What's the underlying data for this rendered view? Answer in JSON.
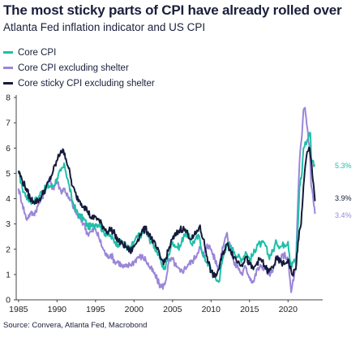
{
  "title": "The most sticky parts of CPI have already rolled over",
  "subtitle": "Atlanta Fed inflation indicator and US CPI",
  "source": "Source: Convera, Atlanta Fed, Macrobond",
  "chart_data": {
    "type": "line",
    "title": "The most sticky parts of CPI have already rolled over",
    "subtitle": "Atlanta Fed inflation indicator and US CPI",
    "xlabel": "",
    "ylabel": "",
    "xlim": [
      1984.7,
      2024.5
    ],
    "ylim": [
      0,
      8
    ],
    "x_ticks": [
      1985,
      1990,
      1995,
      2000,
      2005,
      2010,
      2015,
      2020
    ],
    "y_ticks": [
      0,
      1,
      2,
      3,
      4,
      5,
      6,
      7,
      8
    ],
    "grid": false,
    "legend_position": "top-left",
    "series": [
      {
        "name": "Core CPI",
        "color": "#1fbfa8",
        "end_label": "5.3%",
        "points": [
          [
            1985,
            5.1
          ],
          [
            1985.5,
            4.4
          ],
          [
            1986,
            4.1
          ],
          [
            1986.5,
            3.9
          ],
          [
            1987,
            3.9
          ],
          [
            1987.5,
            4.0
          ],
          [
            1988,
            4.3
          ],
          [
            1988.5,
            4.4
          ],
          [
            1989,
            4.5
          ],
          [
            1989.5,
            4.5
          ],
          [
            1990,
            4.8
          ],
          [
            1990.5,
            5.1
          ],
          [
            1991,
            5.3
          ],
          [
            1991.5,
            4.6
          ],
          [
            1992,
            3.9
          ],
          [
            1992.5,
            3.5
          ],
          [
            1993,
            3.3
          ],
          [
            1993.5,
            3.2
          ],
          [
            1994,
            2.9
          ],
          [
            1994.5,
            2.9
          ],
          [
            1995,
            3.0
          ],
          [
            1995.5,
            3.0
          ],
          [
            1996,
            2.7
          ],
          [
            1996.5,
            2.6
          ],
          [
            1997,
            2.5
          ],
          [
            1997.5,
            2.3
          ],
          [
            1998,
            2.2
          ],
          [
            1998.5,
            2.3
          ],
          [
            1999,
            2.1
          ],
          [
            1999.5,
            2.0
          ],
          [
            2000,
            2.3
          ],
          [
            2000.5,
            2.5
          ],
          [
            2001,
            2.6
          ],
          [
            2001.5,
            2.7
          ],
          [
            2002,
            2.4
          ],
          [
            2002.5,
            2.2
          ],
          [
            2003,
            1.9
          ],
          [
            2003.5,
            1.5
          ],
          [
            2004,
            1.2
          ],
          [
            2004.5,
            1.8
          ],
          [
            2005,
            2.3
          ],
          [
            2005.5,
            2.1
          ],
          [
            2006,
            2.1
          ],
          [
            2006.5,
            2.6
          ],
          [
            2007,
            2.6
          ],
          [
            2007.5,
            2.2
          ],
          [
            2008,
            2.4
          ],
          [
            2008.5,
            2.5
          ],
          [
            2009,
            1.7
          ],
          [
            2009.5,
            1.5
          ],
          [
            2010,
            1.2
          ],
          [
            2010.5,
            0.9
          ],
          [
            2011,
            0.7
          ],
          [
            2011.5,
            1.6
          ],
          [
            2012,
            2.2
          ],
          [
            2012.5,
            2.1
          ],
          [
            2013,
            1.9
          ],
          [
            2013.5,
            1.7
          ],
          [
            2014,
            1.6
          ],
          [
            2014.5,
            1.9
          ],
          [
            2015,
            1.6
          ],
          [
            2015.5,
            1.8
          ],
          [
            2016,
            2.2
          ],
          [
            2016.5,
            2.2
          ],
          [
            2017,
            2.2
          ],
          [
            2017.5,
            1.7
          ],
          [
            2018,
            1.9
          ],
          [
            2018.5,
            2.3
          ],
          [
            2019,
            2.1
          ],
          [
            2019.5,
            2.2
          ],
          [
            2020,
            2.3
          ],
          [
            2020.4,
            1.3
          ],
          [
            2020.8,
            1.6
          ],
          [
            2021,
            1.4
          ],
          [
            2021.3,
            3.0
          ],
          [
            2021.5,
            4.5
          ],
          [
            2021.8,
            5.0
          ],
          [
            2022,
            6.0
          ],
          [
            2022.3,
            6.2
          ],
          [
            2022.7,
            6.5
          ],
          [
            2022.9,
            6.6
          ],
          [
            2023,
            5.6
          ],
          [
            2023.2,
            5.5
          ],
          [
            2023.5,
            5.3
          ]
        ]
      },
      {
        "name": "Core CPI excluding shelter",
        "color": "#9a86d9",
        "end_label": "3.4%",
        "points": [
          [
            1985,
            4.4
          ],
          [
            1985.5,
            3.8
          ],
          [
            1986,
            3.2
          ],
          [
            1986.5,
            3.4
          ],
          [
            1987,
            3.4
          ],
          [
            1987.5,
            3.7
          ],
          [
            1988,
            4.0
          ],
          [
            1988.5,
            4.4
          ],
          [
            1989,
            4.7
          ],
          [
            1989.5,
            4.4
          ],
          [
            1990,
            4.7
          ],
          [
            1990.5,
            4.3
          ],
          [
            1991,
            4.4
          ],
          [
            1991.5,
            4.0
          ],
          [
            1992,
            3.8
          ],
          [
            1992.5,
            3.4
          ],
          [
            1993,
            3.2
          ],
          [
            1993.5,
            3.0
          ],
          [
            1994,
            2.6
          ],
          [
            1994.5,
            2.7
          ],
          [
            1995,
            2.8
          ],
          [
            1995.5,
            2.4
          ],
          [
            1996,
            2.0
          ],
          [
            1996.5,
            1.7
          ],
          [
            1997,
            1.8
          ],
          [
            1997.5,
            1.5
          ],
          [
            1998,
            1.5
          ],
          [
            1998.5,
            1.3
          ],
          [
            1999,
            1.3
          ],
          [
            1999.5,
            1.4
          ],
          [
            2000,
            1.5
          ],
          [
            2000.5,
            1.7
          ],
          [
            2001,
            1.7
          ],
          [
            2001.5,
            1.6
          ],
          [
            2002,
            1.3
          ],
          [
            2002.5,
            1.1
          ],
          [
            2003,
            0.8
          ],
          [
            2003.5,
            0.5
          ],
          [
            2004,
            0.6
          ],
          [
            2004.5,
            1.5
          ],
          [
            2005,
            1.6
          ],
          [
            2005.5,
            1.3
          ],
          [
            2006,
            1.1
          ],
          [
            2006.5,
            1.2
          ],
          [
            2007,
            1.4
          ],
          [
            2007.5,
            1.5
          ],
          [
            2008,
            1.7
          ],
          [
            2008.5,
            2.1
          ],
          [
            2009,
            1.7
          ],
          [
            2009.5,
            2.2
          ],
          [
            2010,
            2.0
          ],
          [
            2010.5,
            1.6
          ],
          [
            2011,
            1.2
          ],
          [
            2011.5,
            2.1
          ],
          [
            2012,
            2.6
          ],
          [
            2012.5,
            2.1
          ],
          [
            2013,
            1.4
          ],
          [
            2013.5,
            1.3
          ],
          [
            2014,
            1.0
          ],
          [
            2014.5,
            1.3
          ],
          [
            2015,
            0.9
          ],
          [
            2015.5,
            0.7
          ],
          [
            2016,
            1.2
          ],
          [
            2016.5,
            1.3
          ],
          [
            2017,
            1.3
          ],
          [
            2017.5,
            1.0
          ],
          [
            2018,
            1.1
          ],
          [
            2018.5,
            1.7
          ],
          [
            2019,
            1.6
          ],
          [
            2019.5,
            1.8
          ],
          [
            2020,
            1.6
          ],
          [
            2020.4,
            0.3
          ],
          [
            2020.8,
            1.0
          ],
          [
            2021,
            1.2
          ],
          [
            2021.3,
            4.0
          ],
          [
            2021.5,
            5.5
          ],
          [
            2021.8,
            6.5
          ],
          [
            2022,
            7.5
          ],
          [
            2022.2,
            7.6
          ],
          [
            2022.5,
            6.8
          ],
          [
            2022.8,
            6.0
          ],
          [
            2023,
            4.5
          ],
          [
            2023.2,
            4.2
          ],
          [
            2023.5,
            3.4
          ]
        ]
      },
      {
        "name": "Core sticky CPI excluding shelter",
        "color": "#141b3a",
        "end_label": "3.9%",
        "points": [
          [
            1985,
            5.1
          ],
          [
            1985.5,
            4.7
          ],
          [
            1986,
            4.4
          ],
          [
            1986.5,
            4.0
          ],
          [
            1987,
            3.9
          ],
          [
            1987.5,
            3.9
          ],
          [
            1988,
            4.1
          ],
          [
            1988.5,
            4.4
          ],
          [
            1989,
            4.7
          ],
          [
            1989.5,
            5.1
          ],
          [
            1990,
            5.5
          ],
          [
            1990.5,
            5.9
          ],
          [
            1991,
            5.8
          ],
          [
            1991.5,
            5.2
          ],
          [
            1992,
            4.5
          ],
          [
            1992.5,
            4.1
          ],
          [
            1993,
            3.9
          ],
          [
            1993.5,
            3.7
          ],
          [
            1994,
            3.5
          ],
          [
            1994.5,
            3.2
          ],
          [
            1995,
            3.3
          ],
          [
            1995.5,
            3.1
          ],
          [
            1996,
            2.9
          ],
          [
            1996.5,
            2.7
          ],
          [
            1997,
            2.8
          ],
          [
            1997.5,
            2.6
          ],
          [
            1998,
            2.3
          ],
          [
            1998.5,
            2.2
          ],
          [
            1999,
            2.1
          ],
          [
            1999.5,
            1.9
          ],
          [
            2000,
            2.1
          ],
          [
            2000.5,
            2.4
          ],
          [
            2001,
            2.7
          ],
          [
            2001.5,
            2.8
          ],
          [
            2002,
            2.6
          ],
          [
            2002.5,
            2.3
          ],
          [
            2003,
            2.0
          ],
          [
            2003.5,
            1.6
          ],
          [
            2004,
            1.5
          ],
          [
            2004.5,
            2.0
          ],
          [
            2005,
            2.4
          ],
          [
            2005.5,
            2.6
          ],
          [
            2006,
            2.8
          ],
          [
            2006.5,
            2.8
          ],
          [
            2007,
            2.6
          ],
          [
            2007.5,
            2.4
          ],
          [
            2008,
            2.6
          ],
          [
            2008.5,
            2.9
          ],
          [
            2009,
            2.4
          ],
          [
            2009.5,
            1.7
          ],
          [
            2010,
            1.1
          ],
          [
            2010.5,
            0.9
          ],
          [
            2011,
            1.2
          ],
          [
            2011.5,
            1.8
          ],
          [
            2012,
            2.2
          ],
          [
            2012.5,
            2.0
          ],
          [
            2013,
            1.7
          ],
          [
            2013.5,
            1.5
          ],
          [
            2014,
            1.4
          ],
          [
            2014.5,
            1.7
          ],
          [
            2015,
            1.4
          ],
          [
            2015.5,
            1.2
          ],
          [
            2016,
            1.5
          ],
          [
            2016.5,
            1.6
          ],
          [
            2017,
            1.3
          ],
          [
            2017.5,
            1.1
          ],
          [
            2018,
            1.3
          ],
          [
            2018.5,
            1.6
          ],
          [
            2019,
            1.5
          ],
          [
            2019.5,
            1.4
          ],
          [
            2020,
            1.6
          ],
          [
            2020.5,
            1.0
          ],
          [
            2021,
            1.2
          ],
          [
            2021.3,
            2.3
          ],
          [
            2021.7,
            3.0
          ],
          [
            2022,
            4.5
          ],
          [
            2022.4,
            5.7
          ],
          [
            2022.8,
            6.0
          ],
          [
            2023,
            5.5
          ],
          [
            2023.3,
            4.6
          ],
          [
            2023.5,
            3.9
          ]
        ]
      }
    ]
  }
}
